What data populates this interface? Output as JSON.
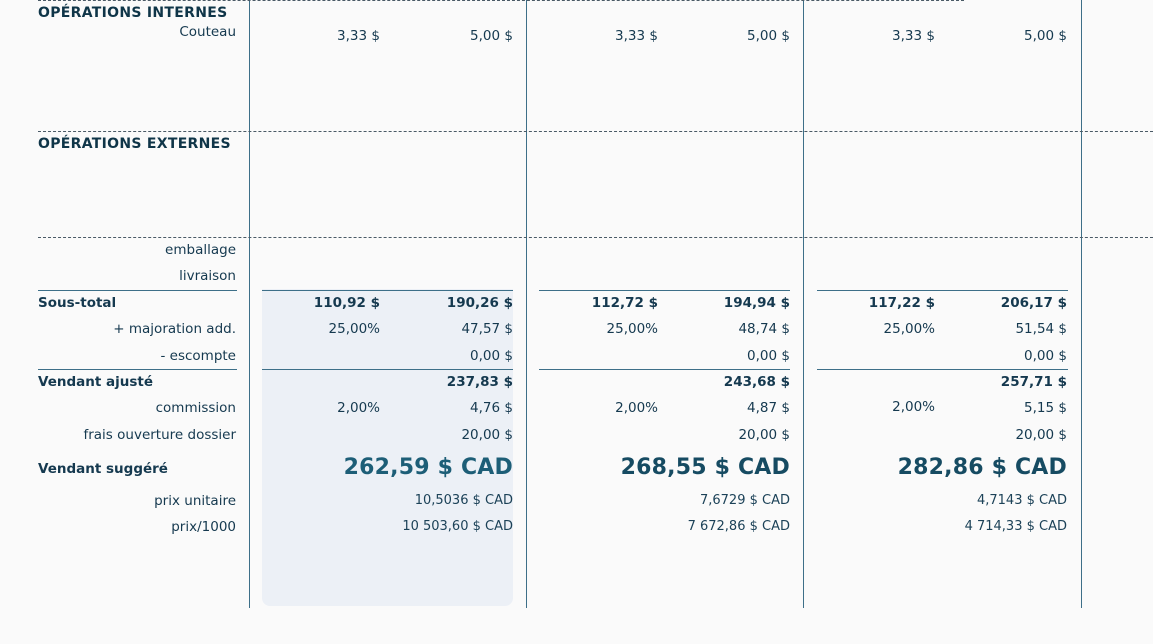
{
  "sections": {
    "internal": "OPÉRATIONS INTERNES",
    "external": "OPÉRATIONS EXTERNES"
  },
  "labels": {
    "couteau": "Couteau",
    "emballage": "emballage",
    "livraison": "livraison",
    "sous_total": "Sous-total",
    "majoration": "+ majoration add.",
    "escompte": "- escompte",
    "vendant_ajuste": "Vendant ajusté",
    "commission": "commission",
    "frais": "frais ouverture dossier",
    "vendant_suggere": "Vendant suggéré",
    "prix_unitaire": "prix unitaire",
    "prix_1000": "prix/1000"
  },
  "columns": [
    {
      "couteau_a": "3,33 $",
      "couteau_b": "5,00 $",
      "sous_total_a": "110,92 $",
      "sous_total_b": "190,26 $",
      "majoration_pct": "25,00%",
      "majoration_amt": "47,57 $",
      "escompte": "0,00 $",
      "vendant_ajuste": "237,83 $",
      "commission_pct": "2,00%",
      "commission_amt": "4,76 $",
      "frais": "20,00 $",
      "vendant_suggere": "262,59 $ CAD",
      "prix_unitaire": "10,5036 $ CAD",
      "prix_1000": "10 503,60 $ CAD",
      "selected": true
    },
    {
      "couteau_a": "3,33 $",
      "couteau_b": "5,00 $",
      "sous_total_a": "112,72 $",
      "sous_total_b": "194,94 $",
      "majoration_pct": "25,00%",
      "majoration_amt": "48,74 $",
      "escompte": "0,00 $",
      "vendant_ajuste": "243,68 $",
      "commission_pct": "2,00%",
      "commission_amt": "4,87 $",
      "frais": "20,00 $",
      "vendant_suggere": "268,55 $ CAD",
      "prix_unitaire": "7,6729 $ CAD",
      "prix_1000": "7 672,86 $ CAD",
      "selected": false
    },
    {
      "couteau_a": "3,33 $",
      "couteau_b": "5,00 $",
      "sous_total_a": "117,22 $",
      "sous_total_b": "206,17 $",
      "majoration_pct": "25,00%",
      "majoration_amt": "51,54 $",
      "escompte": "0,00 $",
      "vendant_ajuste": "257,71 $",
      "commission_pct": "2,00%",
      "commission_amt": "5,15 $",
      "frais": "20,00 $",
      "vendant_suggere": "282,86 $ CAD",
      "prix_unitaire": "4,7143 $ CAD",
      "prix_1000": "4 714,33 $ CAD",
      "selected": false
    }
  ]
}
